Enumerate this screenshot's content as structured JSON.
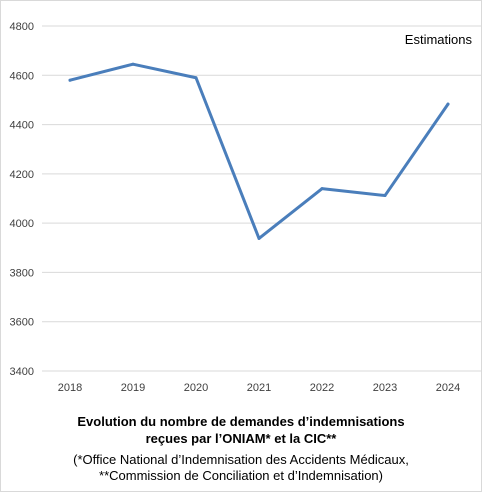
{
  "chart_data": {
    "type": "line",
    "x": [
      "2018",
      "2019",
      "2020",
      "2021",
      "2022",
      "2023",
      "2024"
    ],
    "series": [
      {
        "values": [
          4580,
          4645,
          4590,
          3938,
          4140,
          4112,
          4483
        ]
      }
    ],
    "ylim": [
      3400,
      4800
    ],
    "yticks": [
      "3400",
      "3600",
      "3800",
      "4000",
      "4200",
      "4400",
      "4600",
      "4800"
    ],
    "annotation": "Estimations",
    "grid": "horizontal",
    "line_color": "#4a7ebb"
  },
  "captions": {
    "title_line1": "Evolution du nombre de demandes d’indemnisations",
    "title_line2": "reçues par l’ONIAM* et la CIC**",
    "note_line1": "(*Office National d’Indemnisation des Accidents Médicaux,",
    "note_line2": "**Commission de Conciliation et d’Indemnisation)"
  }
}
